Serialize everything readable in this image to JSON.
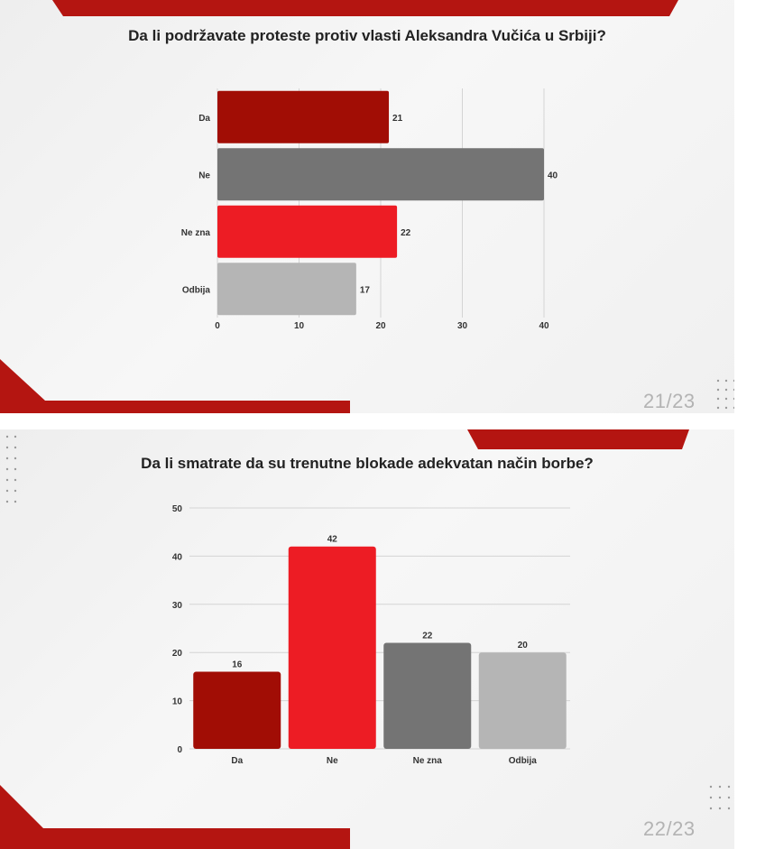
{
  "slides": [
    {
      "title": "Da li podržavate proteste protiv vlasti Aleksandra Vučića u Srbiji?",
      "page": "21/23"
    },
    {
      "title": "Da li smatrate da su trenutne blokade adekvatan način borbe?",
      "page": "22/23"
    }
  ],
  "colors": {
    "dark_red": "#a10d05",
    "bright_red": "#ed1c24",
    "dark_gray": "#747474",
    "light_gray": "#b5b5b5"
  },
  "chart_data": [
    {
      "type": "bar",
      "orientation": "horizontal",
      "categories": [
        "Da",
        "Ne",
        "Ne zna",
        "Odbija"
      ],
      "values": [
        21,
        40,
        22,
        17
      ],
      "bar_colors": [
        "#a10d05",
        "#747474",
        "#ed1c24",
        "#b5b5b5"
      ],
      "xlim": [
        0,
        40
      ],
      "xticks": [
        0,
        10,
        20,
        30,
        40
      ],
      "grid": true,
      "data_labels": true
    },
    {
      "type": "bar",
      "orientation": "vertical",
      "categories": [
        "Da",
        "Ne",
        "Ne zna",
        "Odbija"
      ],
      "values": [
        16,
        42,
        22,
        20
      ],
      "bar_colors": [
        "#a10d05",
        "#ed1c24",
        "#747474",
        "#b5b5b5"
      ],
      "ylim": [
        0,
        50
      ],
      "yticks": [
        0,
        10,
        20,
        30,
        40,
        50
      ],
      "grid": true,
      "data_labels": true
    }
  ]
}
